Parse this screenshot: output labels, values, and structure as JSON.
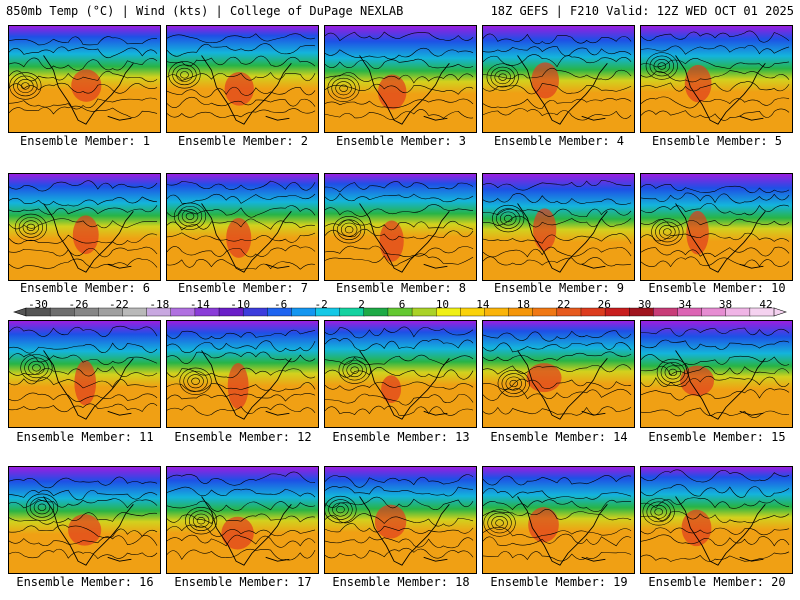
{
  "header": {
    "left_title": "850mb Temp (°C) | Wind (kts) | College of DuPage NEXLAB",
    "right_title": "18Z GEFS | F210 Valid: 12Z WED OCT 01 2025"
  },
  "members": [
    {
      "label": "Ensemble Member: 1"
    },
    {
      "label": "Ensemble Member: 2"
    },
    {
      "label": "Ensemble Member: 3"
    },
    {
      "label": "Ensemble Member: 4"
    },
    {
      "label": "Ensemble Member: 5"
    },
    {
      "label": "Ensemble Member: 6"
    },
    {
      "label": "Ensemble Member: 7"
    },
    {
      "label": "Ensemble Member: 8"
    },
    {
      "label": "Ensemble Member: 9"
    },
    {
      "label": "Ensemble Member: 10"
    },
    {
      "label": "Ensemble Member: 11"
    },
    {
      "label": "Ensemble Member: 12"
    },
    {
      "label": "Ensemble Member: 13"
    },
    {
      "label": "Ensemble Member: 14"
    },
    {
      "label": "Ensemble Member: 15"
    },
    {
      "label": "Ensemble Member: 16"
    },
    {
      "label": "Ensemble Member: 17"
    },
    {
      "label": "Ensemble Member: 18"
    },
    {
      "label": "Ensemble Member: 19"
    },
    {
      "label": "Ensemble Member: 20"
    }
  ],
  "colorbar": {
    "labels": [
      "-30",
      "-26",
      "-22",
      "-18",
      "-14",
      "-10",
      "-6",
      "-2",
      "2",
      "6",
      "10",
      "14",
      "18",
      "22",
      "26",
      "30",
      "34",
      "38",
      "42"
    ],
    "colors": [
      "#555555",
      "#6e6e6e",
      "#878787",
      "#a0a0a0",
      "#b9b9b9",
      "#c8a8e0",
      "#b070e0",
      "#8a3cd8",
      "#6a1ec8",
      "#3c3cdc",
      "#1e64f0",
      "#1496f0",
      "#14c8e6",
      "#14d2a0",
      "#1eaa46",
      "#64c832",
      "#aad228",
      "#f0f014",
      "#fad20a",
      "#fab40a",
      "#f5960a",
      "#f07814",
      "#e65a1e",
      "#dc3c1e",
      "#c81e1e",
      "#a0141e",
      "#c83c78",
      "#dc64b4",
      "#e68cd2",
      "#f0b4e6",
      "#f5d2f0"
    ]
  },
  "map_palette": {
    "cold_top": "#9a1ee0",
    "cold": "#1e50e6",
    "cool": "#14b4dc",
    "mild": "#28b446",
    "warm": "#d2d21e",
    "hot": "#f0a014",
    "very_hot": "#e03c1e",
    "contour": "#000000"
  }
}
